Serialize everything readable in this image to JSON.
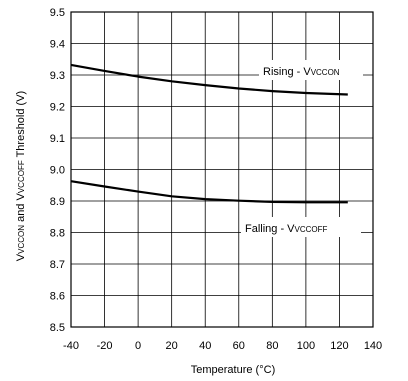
{
  "chart_data": {
    "type": "line",
    "title": "",
    "xlabel": "Temperature (°C)",
    "ylabel": {
      "prefix": "V",
      "sub1": "VCCON",
      "middle": " and V",
      "sub2": "VCCOFF",
      "suffix": " Threshold (V)"
    },
    "xlim": [
      -40,
      140
    ],
    "ylim": [
      8.5,
      9.5
    ],
    "x_ticks": [
      -40,
      -20,
      0,
      20,
      40,
      60,
      80,
      100,
      120,
      140
    ],
    "y_ticks": [
      "8.5",
      "8.6",
      "8.7",
      "8.8",
      "8.9",
      "9.0",
      "9.1",
      "9.2",
      "9.3",
      "9.4",
      "9.5"
    ],
    "grid": true,
    "series": [
      {
        "label": {
          "main": "Rising - V",
          "sub": "VCCON"
        },
        "x": [
          -40,
          -20,
          0,
          20,
          40,
          60,
          80,
          100,
          125
        ],
        "y": [
          9.332,
          9.313,
          9.295,
          9.28,
          9.268,
          9.257,
          9.249,
          9.243,
          9.238
        ]
      },
      {
        "label": {
          "main": "Falling - V",
          "sub": "VCCOFF"
        },
        "x": [
          -40,
          -20,
          0,
          20,
          40,
          60,
          80,
          100,
          125
        ],
        "y": [
          8.963,
          8.946,
          8.93,
          8.915,
          8.906,
          8.901,
          8.897,
          8.896,
          8.896
        ]
      }
    ]
  }
}
